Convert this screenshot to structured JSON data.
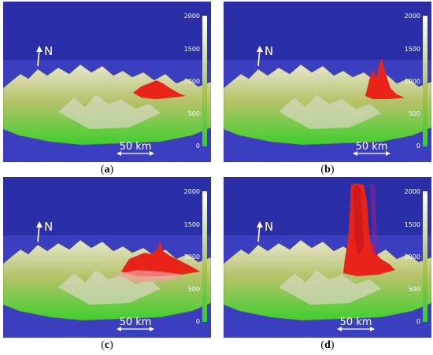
{
  "panels": [
    {
      "id": "a",
      "caption_open": "(",
      "caption_letter": "a",
      "caption_close": ")",
      "north_label": "N",
      "scale_label": "50 km",
      "colorbar_ticks": [
        "2000",
        "1500",
        "1000",
        "500",
        "0"
      ]
    },
    {
      "id": "b",
      "caption_open": "(",
      "caption_letter": "b",
      "caption_close": ")",
      "north_label": "N",
      "scale_label": "50 km",
      "colorbar_ticks": [
        "2000",
        "1500",
        "1000",
        "500",
        "0"
      ]
    },
    {
      "id": "c",
      "caption_open": "(",
      "caption_letter": "c",
      "caption_close": ")",
      "north_label": "N",
      "scale_label": "50 km",
      "colorbar_ticks": [
        "2000",
        "1500",
        "1000",
        "500",
        "0"
      ]
    },
    {
      "id": "d",
      "caption_open": "(",
      "caption_letter": "d",
      "caption_close": ")",
      "north_label": "N",
      "scale_label": "50 km",
      "colorbar_ticks": [
        "2000",
        "1500",
        "1000",
        "500",
        "0"
      ]
    }
  ],
  "colors": {
    "sky": "#2a2fa8",
    "horizon": "#3b3fbf",
    "terrain_low": "#3fcf2f",
    "terrain_mid": "#b8c26a",
    "terrain_high": "#e8e6d0",
    "plume": "#e8231a"
  }
}
